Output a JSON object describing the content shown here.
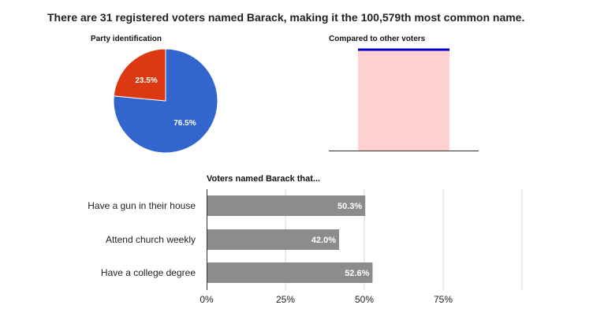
{
  "header": {
    "title": "There are 31 registered voters named Barack, making it the 100,579th most common name."
  },
  "colors": {
    "pie_blue": "#3366cc",
    "pie_red": "#dc3912",
    "bar_gray": "#8c8c8c",
    "compare_fill": "#ffd1d1",
    "compare_line": "#0000cc"
  },
  "chart_data": [
    {
      "type": "pie",
      "title": "Party identification",
      "slices": [
        {
          "label": "76.5%",
          "value": 76.5
        },
        {
          "label": "23.5%",
          "value": 23.5
        }
      ]
    },
    {
      "type": "bar",
      "title": "Compared to other voters",
      "categories": [
        ""
      ],
      "values": [
        1
      ],
      "ylim": [
        0,
        1
      ]
    },
    {
      "type": "bar",
      "orientation": "horizontal",
      "title": "Voters named Barack that...",
      "categories": [
        "Have a gun in their house",
        "Attend church weekly",
        "Have a college degree"
      ],
      "values": [
        50.3,
        42.0,
        52.6
      ],
      "value_labels": [
        "50.3%",
        "42.0%",
        "52.6%"
      ],
      "xlim": [
        0,
        100
      ],
      "x_ticks": [
        "0%",
        "25%",
        "50%",
        "75%"
      ],
      "grid": true
    }
  ]
}
